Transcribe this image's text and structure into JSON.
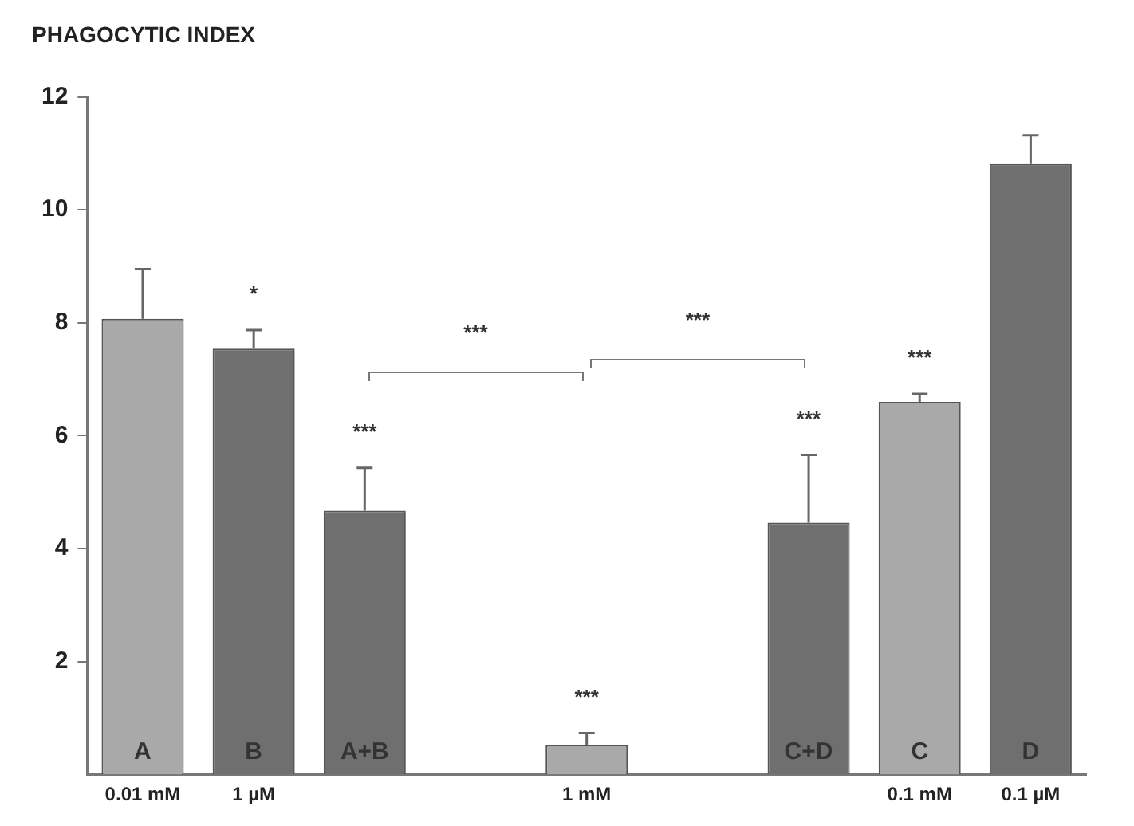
{
  "chart_data": {
    "type": "bar",
    "ylabel": "PHAGOCYTIC INDEX",
    "categories": [
      "0.01 mM",
      "1 µM",
      null,
      null,
      "1 mM",
      null,
      null,
      "0.1 mM",
      "0.1 µM"
    ],
    "values": [
      8.07,
      7.54,
      4.67,
      null,
      0.52,
      null,
      4.46,
      6.6,
      10.81
    ],
    "errors": [
      [
        8.07,
        8.95
      ],
      [
        7.54,
        7.87
      ],
      [
        4.67,
        5.43
      ],
      null,
      [
        0.52,
        0.73
      ],
      null,
      [
        4.46,
        5.66
      ],
      [
        6.6,
        6.74
      ],
      [
        10.81,
        11.32
      ]
    ],
    "colors": [
      "#a9a9a9",
      "#6f6f6f",
      "#6f6f6f",
      null,
      "#a9a9a9",
      null,
      "#6f6f6f",
      "#a9a9a9",
      "#6f6f6f"
    ],
    "value_labels": [
      "A",
      "B",
      "A+B",
      null,
      null,
      null,
      "C+D",
      "C",
      "D"
    ],
    "annotations": [
      "*",
      "***",
      "***",
      "***",
      "***",
      "***",
      "***"
    ],
    "ylim": [
      0,
      12
    ],
    "yticks": [
      2,
      4,
      6,
      8,
      10,
      12
    ],
    "grid": false,
    "legend": false
  }
}
